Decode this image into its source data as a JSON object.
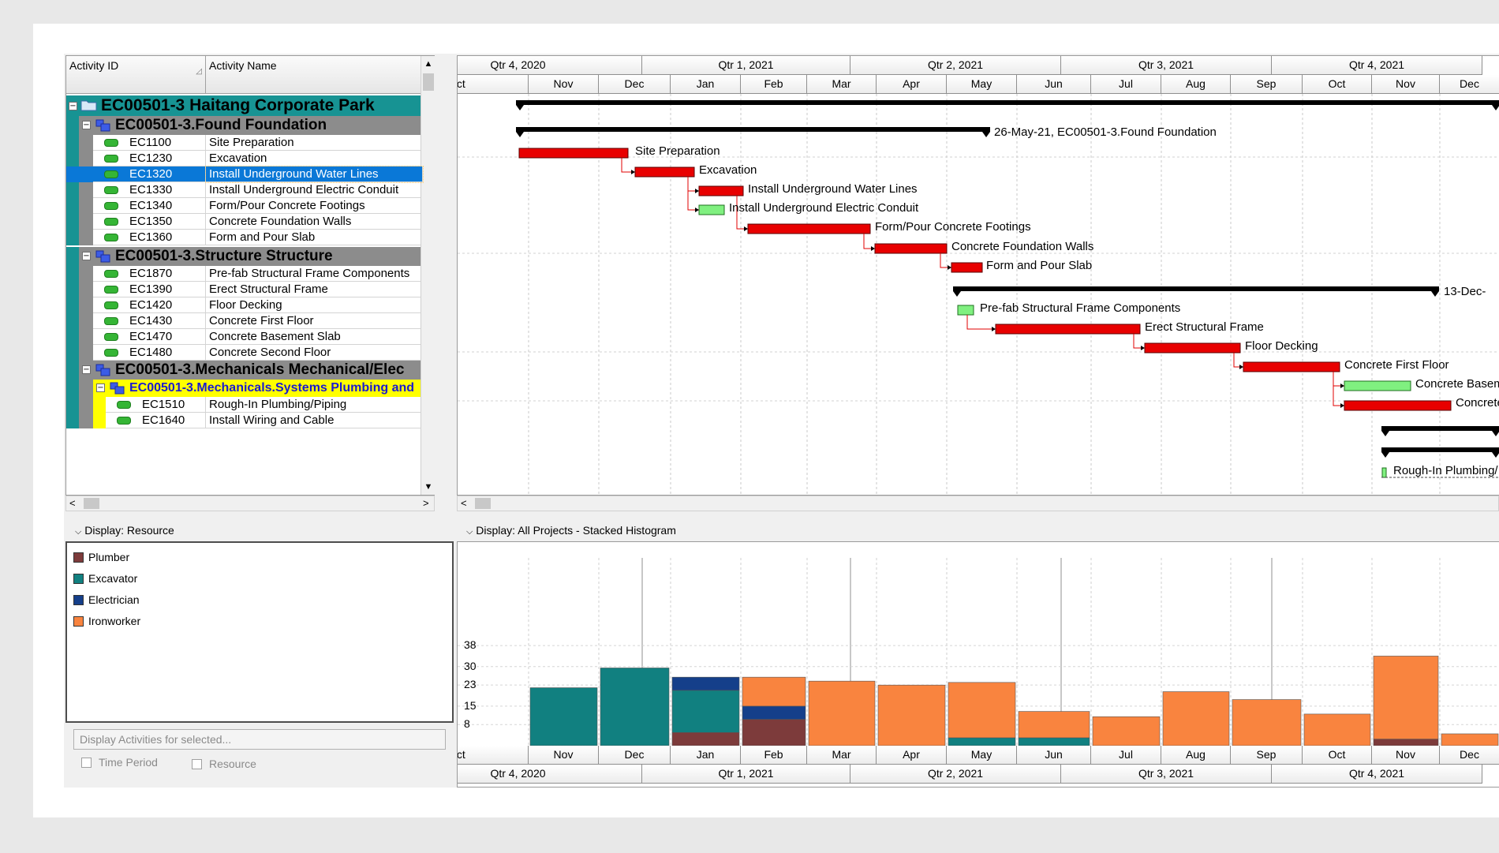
{
  "table": {
    "col_activity_id": "Activity ID",
    "col_activity_name": "Activity Name",
    "rows": [
      {
        "type": "project",
        "id": "EC00501-3  Haitang Corporate Park",
        "name": ""
      },
      {
        "type": "wbs",
        "id": "EC00501-3.Found  Foundation",
        "name": ""
      },
      {
        "type": "act",
        "id": "EC1100",
        "name": "Site Preparation"
      },
      {
        "type": "act",
        "id": "EC1230",
        "name": "Excavation"
      },
      {
        "type": "act",
        "id": "EC1320",
        "name": "Install Underground Water Lines",
        "selected": true
      },
      {
        "type": "act",
        "id": "EC1330",
        "name": "Install Underground Electric Conduit"
      },
      {
        "type": "act",
        "id": "EC1340",
        "name": "Form/Pour Concrete Footings"
      },
      {
        "type": "act",
        "id": "EC1350",
        "name": "Concrete Foundation Walls"
      },
      {
        "type": "act",
        "id": "EC1360",
        "name": "Form and Pour Slab"
      },
      {
        "type": "wbs",
        "id": "EC00501-3.Structure  Structure",
        "name": ""
      },
      {
        "type": "act",
        "id": "EC1870",
        "name": "Pre-fab Structural Frame Components"
      },
      {
        "type": "act",
        "id": "EC1390",
        "name": "Erect Structural Frame"
      },
      {
        "type": "act",
        "id": "EC1420",
        "name": "Floor Decking"
      },
      {
        "type": "act",
        "id": "EC1430",
        "name": "Concrete First Floor"
      },
      {
        "type": "act",
        "id": "EC1470",
        "name": "Concrete Basement Slab"
      },
      {
        "type": "act",
        "id": "EC1480",
        "name": "Concrete Second Floor"
      },
      {
        "type": "wbs",
        "id": "EC00501-3.Mechanicals  Mechanical/Elec",
        "name": ""
      },
      {
        "type": "subwbs",
        "id": "EC00501-3.Mechanicals.Systems  Plumbing and",
        "name": ""
      },
      {
        "type": "act2",
        "id": "EC1510",
        "name": "Rough-In Plumbing/Piping"
      },
      {
        "type": "act2",
        "id": "EC1640",
        "name": "Install Wiring and Cable"
      }
    ]
  },
  "timescale": {
    "quarters": [
      "Qtr 4, 2020",
      "Qtr 1, 2021",
      "Qtr 2, 2021",
      "Qtr 3, 2021",
      "Qtr 4, 2021"
    ],
    "months": [
      "Oct",
      "Nov",
      "Dec",
      "Jan",
      "Feb",
      "Mar",
      "Apr",
      "May",
      "Jun",
      "Jul",
      "Aug",
      "Sep",
      "Oct",
      "Nov",
      "Dec"
    ]
  },
  "gantt": {
    "labels": {
      "found_summary": "26-May-21, EC00501-3.Found  Foundation",
      "structure_summary": "13-Dec-",
      "site_prep": "Site Preparation",
      "excavation": "Excavation",
      "water_lines": "Install Underground Water Lines",
      "electric": "Install Underground Electric Conduit",
      "footings": "Form/Pour Concrete Footings",
      "found_walls": "Concrete Foundation Walls",
      "slab": "Form and Pour Slab",
      "prefab": "Pre-fab Structural Frame Components",
      "erect": "Erect Structural Frame",
      "decking": "Floor Decking",
      "first_floor": "Concrete First Floor",
      "basement": "Concrete Basement",
      "second_floor": "Concrete",
      "rough_in": "Rough-In Plumbing/"
    },
    "colors": {
      "critical": "#e80000",
      "noncritical": "#80f080",
      "summary": "#000000"
    }
  },
  "resource_panel": {
    "title": "Display: Resource",
    "resources": [
      {
        "name": "Plumber",
        "color": "#7d3b3b"
      },
      {
        "name": "Excavator",
        "color": "#118080"
      },
      {
        "name": "Electrician",
        "color": "#153f8a"
      },
      {
        "name": "Ironworker",
        "color": "#f9843f"
      }
    ],
    "display_btn": "Display Activities for selected...",
    "chk_time_period": "Time Period",
    "chk_resource": "Resource"
  },
  "histogram": {
    "title": "Display: All Projects - Stacked Histogram",
    "yticks": [
      "38",
      "30",
      "23",
      "15",
      "8"
    ],
    "months": [
      {
        "m": "Oct",
        "stack": []
      },
      {
        "m": "Nov",
        "stack": [
          {
            "r": "Excavator",
            "v": 22
          }
        ]
      },
      {
        "m": "Dec",
        "stack": [
          {
            "r": "Excavator",
            "v": 29.5
          }
        ]
      },
      {
        "m": "Jan",
        "stack": [
          {
            "r": "Plumber",
            "v": 5
          },
          {
            "r": "Excavator",
            "v": 16
          },
          {
            "r": "Electrician",
            "v": 5
          }
        ]
      },
      {
        "m": "Feb",
        "stack": [
          {
            "r": "Plumber",
            "v": 10
          },
          {
            "r": "Electrician",
            "v": 5
          },
          {
            "r": "Ironworker",
            "v": 11
          }
        ]
      },
      {
        "m": "Mar",
        "stack": [
          {
            "r": "Ironworker",
            "v": 24.5
          }
        ]
      },
      {
        "m": "Apr",
        "stack": [
          {
            "r": "Ironworker",
            "v": 23
          }
        ]
      },
      {
        "m": "May",
        "stack": [
          {
            "r": "Excavator",
            "v": 3
          },
          {
            "r": "Ironworker",
            "v": 21
          }
        ]
      },
      {
        "m": "Jun",
        "stack": [
          {
            "r": "Excavator",
            "v": 3
          },
          {
            "r": "Ironworker",
            "v": 10
          }
        ]
      },
      {
        "m": "Jul",
        "stack": [
          {
            "r": "Ironworker",
            "v": 11
          }
        ]
      },
      {
        "m": "Aug",
        "stack": [
          {
            "r": "Ironworker",
            "v": 20.5
          }
        ]
      },
      {
        "m": "Sep",
        "stack": [
          {
            "r": "Ironworker",
            "v": 17.5
          }
        ]
      },
      {
        "m": "Oct",
        "stack": [
          {
            "r": "Ironworker",
            "v": 12
          }
        ]
      },
      {
        "m": "Nov",
        "stack": [
          {
            "r": "Plumber",
            "v": 2.5
          },
          {
            "r": "Ironworker",
            "v": 31.5
          }
        ]
      },
      {
        "m": "Dec",
        "stack": [
          {
            "r": "Ironworker",
            "v": 4.5
          }
        ]
      }
    ]
  }
}
